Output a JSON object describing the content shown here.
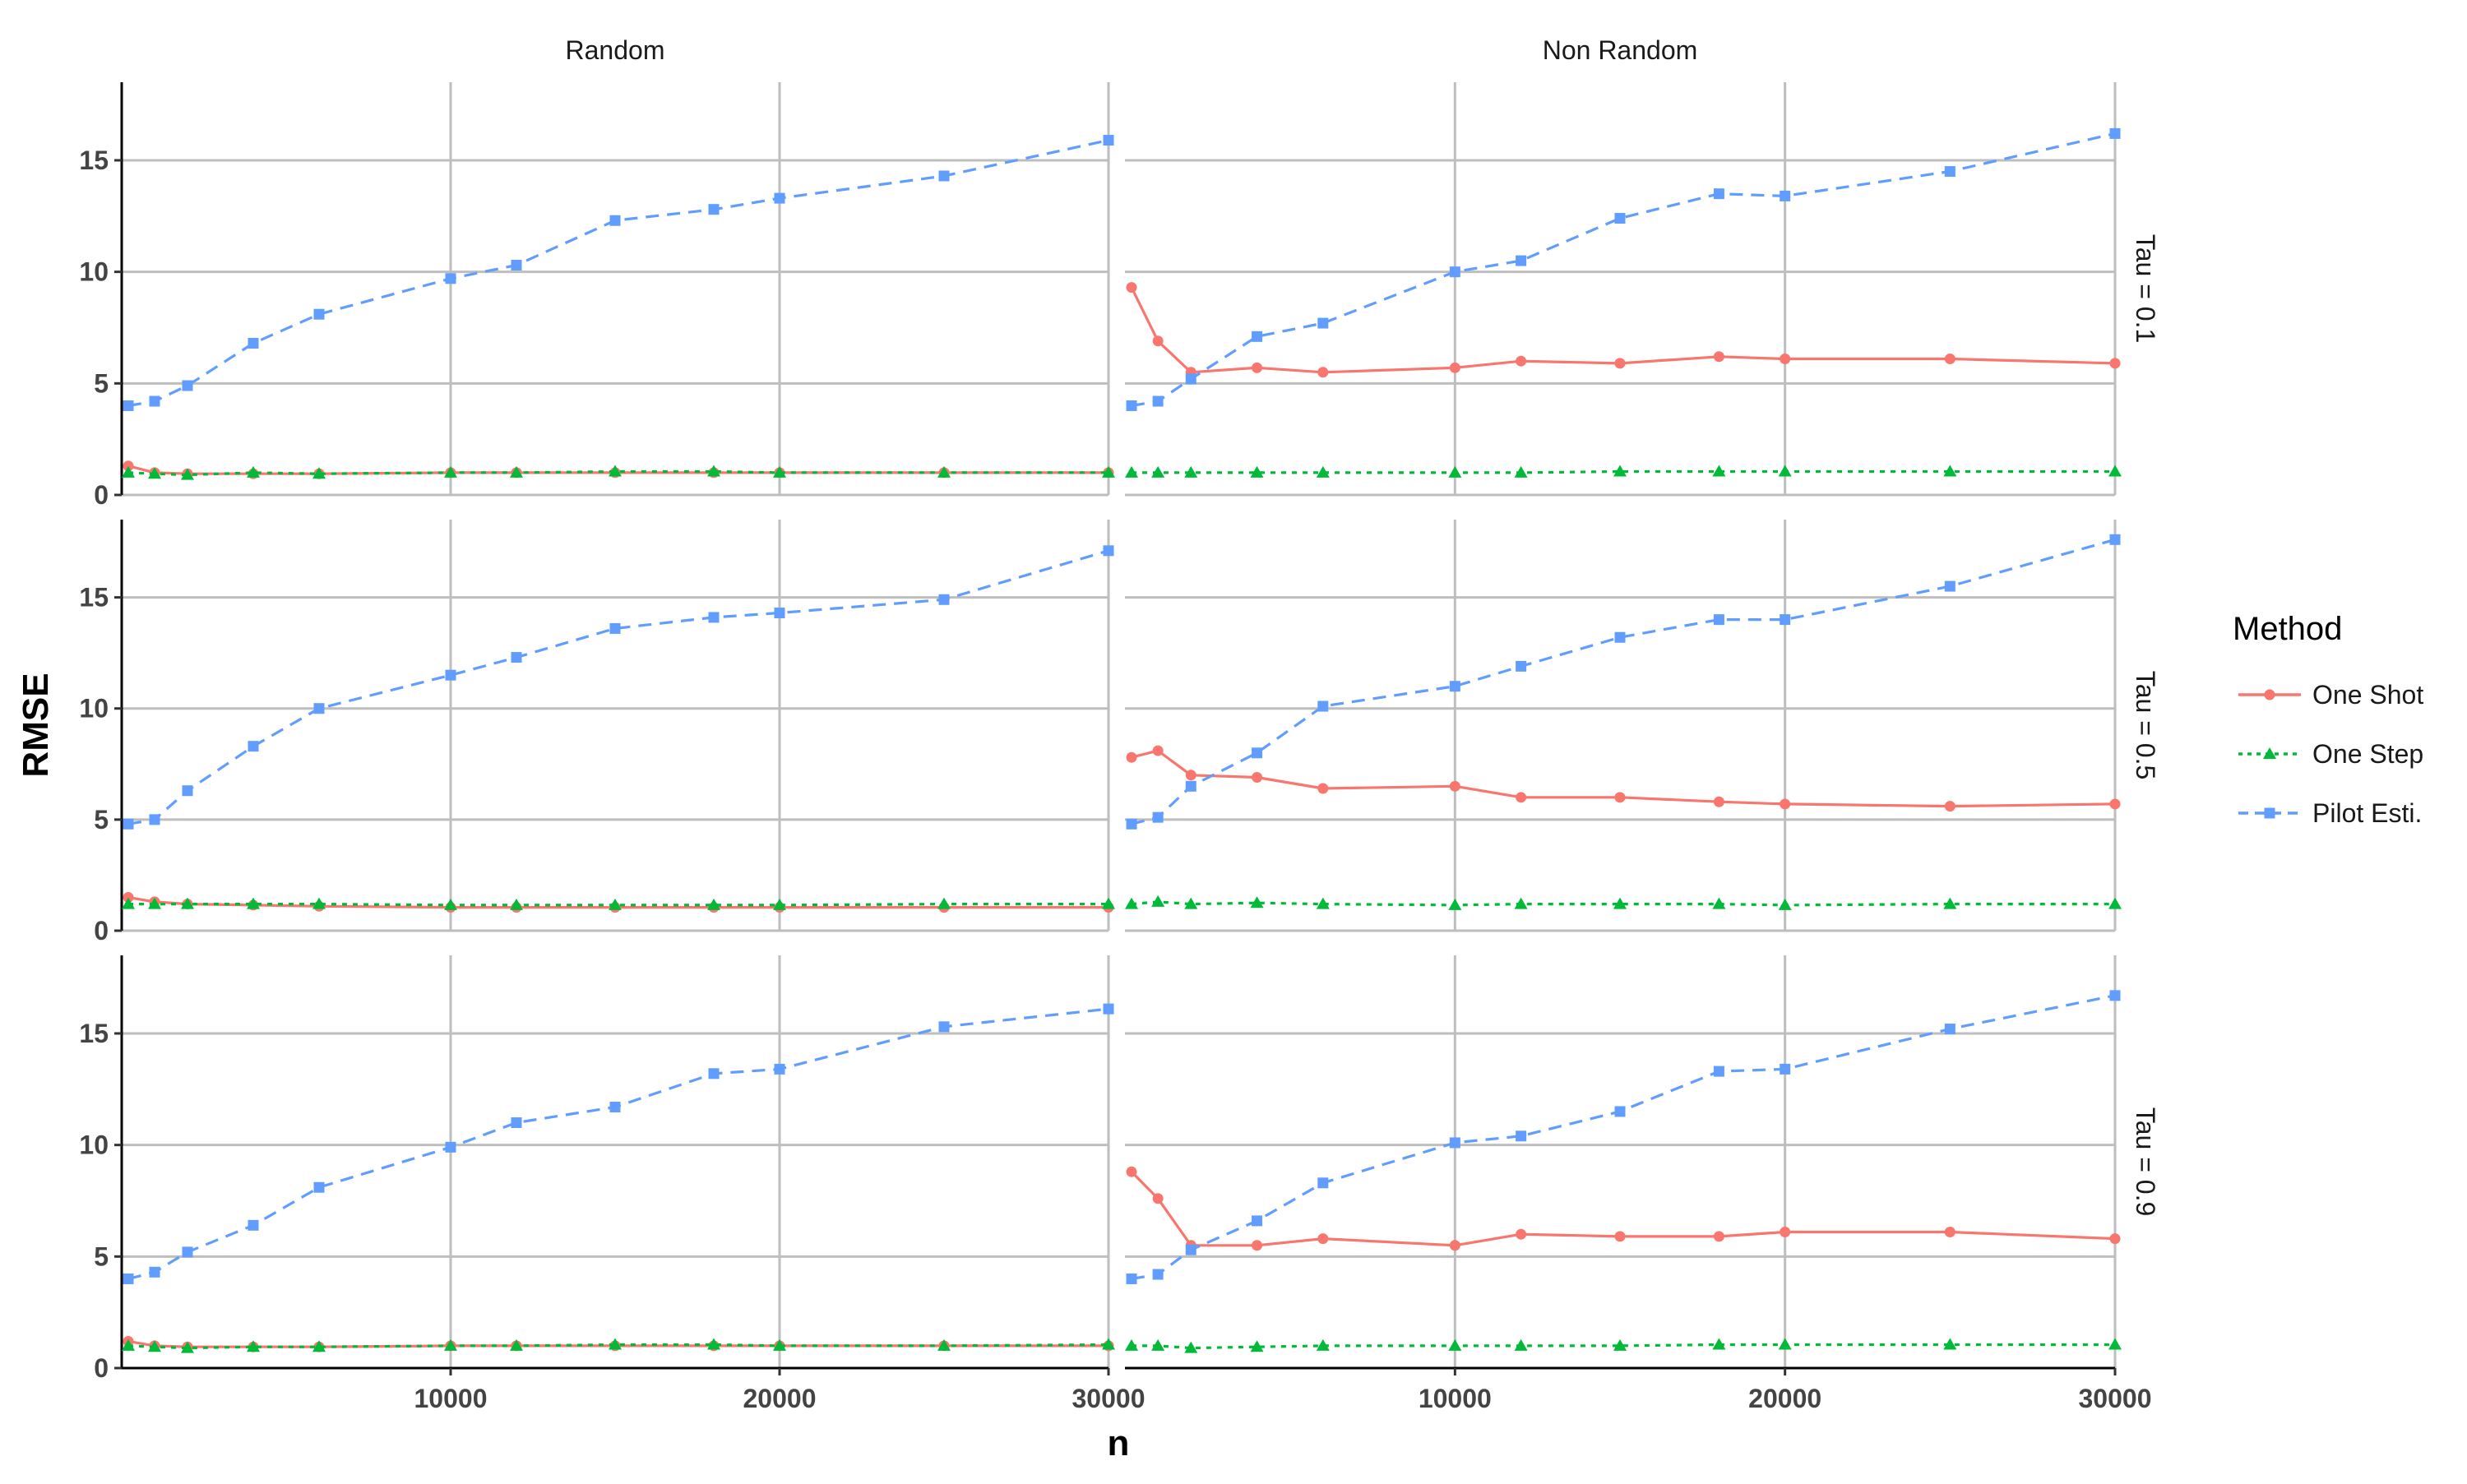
{
  "chart_data": {
    "type": "line",
    "facet_columns": [
      "Random",
      "Non Random"
    ],
    "facet_rows": [
      "Tau = 0.1",
      "Tau = 0.5",
      "Tau = 0.9"
    ],
    "xlabel": "n",
    "ylabel": "RMSE",
    "xlim": [
      0,
      30000
    ],
    "ylim": [
      0,
      18.5
    ],
    "xticks": [
      10000,
      20000,
      30000
    ],
    "xtick_labels": [
      "10000",
      "20000",
      "30000"
    ],
    "yticks": [
      0,
      5,
      10,
      15
    ],
    "ytick_labels": [
      "0",
      "5",
      "10",
      "15"
    ],
    "grid": true,
    "legend": {
      "title": "Method",
      "position": "right",
      "entries": [
        "One Shot",
        "One Step",
        "Pilot Esti."
      ]
    },
    "series_styles": [
      {
        "name": "One Shot",
        "color": "#F8766D",
        "dash": "solid",
        "marker": "circle"
      },
      {
        "name": "One Step",
        "color": "#00BA38",
        "dash": "dotted",
        "marker": "triangle"
      },
      {
        "name": "Pilot Esti.",
        "color": "#619CFF",
        "dash": "dashed",
        "marker": "square"
      }
    ],
    "x": [
      200,
      1000,
      2000,
      4000,
      6000,
      10000,
      12000,
      15000,
      18000,
      20000,
      25000,
      30000
    ],
    "panels": [
      {
        "column": "Random",
        "row": "Tau = 0.1",
        "series": [
          {
            "name": "One Shot",
            "values": [
              1.3,
              1.0,
              0.95,
              0.95,
              0.95,
              1.0,
              1.0,
              1.0,
              1.0,
              1.0,
              1.0,
              1.0
            ]
          },
          {
            "name": "One Step",
            "values": [
              1.0,
              0.95,
              0.9,
              1.0,
              0.95,
              1.0,
              1.0,
              1.05,
              1.05,
              1.0,
              1.0,
              1.0
            ]
          },
          {
            "name": "Pilot Esti.",
            "values": [
              4.0,
              4.2,
              4.9,
              6.8,
              8.1,
              9.7,
              10.3,
              12.3,
              12.8,
              13.3,
              14.3,
              15.9
            ]
          }
        ]
      },
      {
        "column": "Non Random",
        "row": "Tau = 0.1",
        "series": [
          {
            "name": "One Shot",
            "values": [
              9.3,
              6.9,
              5.5,
              5.7,
              5.5,
              5.7,
              6.0,
              5.9,
              6.2,
              6.1,
              6.1,
              5.9
            ]
          },
          {
            "name": "One Step",
            "values": [
              1.0,
              1.0,
              1.0,
              1.0,
              1.0,
              1.0,
              1.0,
              1.05,
              1.05,
              1.05,
              1.05,
              1.05
            ]
          },
          {
            "name": "Pilot Esti.",
            "values": [
              4.0,
              4.2,
              5.2,
              7.1,
              7.7,
              10.0,
              10.5,
              12.4,
              13.5,
              13.4,
              14.5,
              16.2
            ]
          }
        ]
      },
      {
        "column": "Random",
        "row": "Tau = 0.5",
        "series": [
          {
            "name": "One Shot",
            "values": [
              1.5,
              1.3,
              1.2,
              1.15,
              1.1,
              1.05,
              1.05,
              1.05,
              1.05,
              1.05,
              1.05,
              1.05
            ]
          },
          {
            "name": "One Step",
            "values": [
              1.2,
              1.2,
              1.2,
              1.2,
              1.2,
              1.15,
              1.15,
              1.15,
              1.15,
              1.15,
              1.2,
              1.2
            ]
          },
          {
            "name": "Pilot Esti.",
            "values": [
              4.8,
              5.0,
              6.3,
              8.3,
              10.0,
              11.5,
              12.3,
              13.6,
              14.1,
              14.3,
              14.9,
              17.1
            ]
          }
        ]
      },
      {
        "column": "Non Random",
        "row": "Tau = 0.5",
        "series": [
          {
            "name": "One Shot",
            "values": [
              7.8,
              8.1,
              7.0,
              6.9,
              6.4,
              6.5,
              6.0,
              6.0,
              5.8,
              5.7,
              5.6,
              5.7
            ]
          },
          {
            "name": "One Step",
            "values": [
              1.2,
              1.3,
              1.2,
              1.25,
              1.2,
              1.15,
              1.2,
              1.2,
              1.2,
              1.15,
              1.2,
              1.2
            ]
          },
          {
            "name": "Pilot Esti.",
            "values": [
              4.8,
              5.1,
              6.5,
              8.0,
              10.1,
              11.0,
              11.9,
              13.2,
              14.0,
              14.0,
              15.5,
              17.6
            ]
          }
        ]
      },
      {
        "column": "Random",
        "row": "Tau = 0.9",
        "series": [
          {
            "name": "One Shot",
            "values": [
              1.2,
              1.0,
              0.95,
              0.95,
              0.95,
              1.0,
              1.0,
              1.0,
              1.0,
              1.0,
              1.0,
              1.0
            ]
          },
          {
            "name": "One Step",
            "values": [
              1.0,
              0.95,
              0.9,
              0.95,
              0.95,
              1.0,
              1.0,
              1.05,
              1.05,
              1.0,
              1.0,
              1.05
            ]
          },
          {
            "name": "Pilot Esti.",
            "values": [
              4.0,
              4.3,
              5.2,
              6.4,
              8.1,
              9.9,
              11.0,
              11.7,
              13.2,
              13.4,
              15.3,
              16.1
            ]
          }
        ]
      },
      {
        "column": "Non Random",
        "row": "Tau = 0.9",
        "series": [
          {
            "name": "One Shot",
            "values": [
              8.8,
              7.6,
              5.5,
              5.5,
              5.8,
              5.5,
              6.0,
              5.9,
              5.9,
              6.1,
              6.1,
              5.8
            ]
          },
          {
            "name": "One Step",
            "values": [
              1.0,
              1.0,
              0.9,
              0.95,
              1.0,
              1.0,
              1.0,
              1.0,
              1.05,
              1.05,
              1.05,
              1.05
            ]
          },
          {
            "name": "Pilot Esti.",
            "values": [
              4.0,
              4.2,
              5.3,
              6.6,
              8.3,
              10.1,
              10.4,
              11.5,
              13.3,
              13.4,
              15.2,
              16.7
            ]
          }
        ]
      }
    ]
  }
}
